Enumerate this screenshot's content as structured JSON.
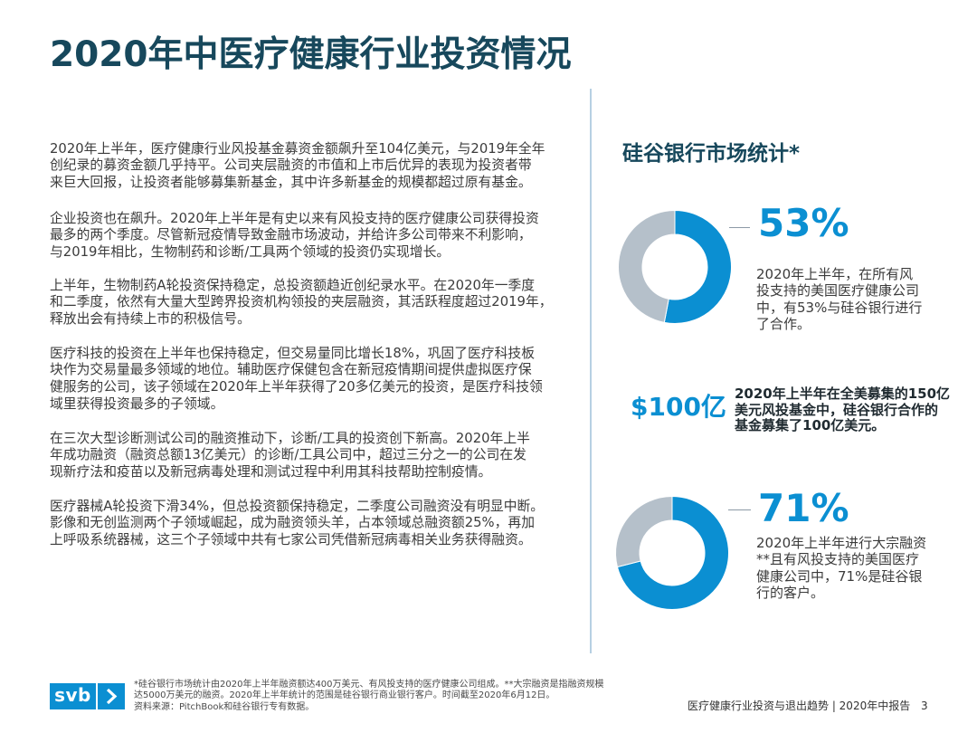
{
  "colors": {
    "title": "#17485c",
    "accent": "#0b8fd2",
    "muted": "#b5c0ca",
    "body_text": "#3b3b3b",
    "strong_text": "#1f2a30",
    "divider": "#b7d0e3",
    "leader_line": "#8c9aa6"
  },
  "header": {
    "title": "2020年中医疗健康行业投资情况"
  },
  "body": {
    "paragraphs": [
      {
        "lines": [
          "2020年上半年，医疗健康行业风投基金募资金额飙升至104亿美元，与2019年全年",
          "创纪录的募资金额几乎持平。公司夹层融资的市值和上市后优异的表现为投资者带",
          "来巨大回报，让投资者能够募集新基金，其中许多新基金的规模都超过原有基金。"
        ]
      },
      {
        "lines": [
          "企业投资也在飙升。2020年上半年是有史以来有风投支持的医疗健康公司获得投资",
          "最多的两个季度。尽管新冠疫情导致金融市场波动，并给许多公司带来不利影响，",
          "与2019年相比，生物制药和诊断/工具两个领域的投资仍实现增长。"
        ]
      },
      {
        "lines": [
          "上半年，生物制药A轮投资保持稳定，总投资额趋近创纪录水平。在2020年一季度",
          "和二季度，依然有大量大型跨界投资机构领投的夹层融资，其活跃程度超过2019年，",
          "释放出会有持续上市的积极信号。"
        ]
      },
      {
        "lines": [
          "医疗科技的投资在上半年也保持稳定，但交易量同比增长18%，巩固了医疗科技板",
          "块作为交易量最多领域的地位。辅助医疗保健包含在新冠疫情期间提供虚拟医疗保",
          "健服务的公司，该子领域在2020年上半年获得了20多亿美元的投资，是医疗科技领",
          "域里获得投资最多的子领域。"
        ]
      },
      {
        "lines": [
          "在三次大型诊断测试公司的融资推动下，诊断/工具的投资创下新高。2020年上半",
          "年成功融资（融资总额13亿美元）的诊断/工具公司中，超过三分之一的公司在发",
          "现新疗法和疫苗以及新冠病毒处理和测试过程中利用其科技帮助控制疫情。"
        ]
      },
      {
        "lines": [
          "医疗器械A轮投资下滑34%，但总投资额保持稳定，二季度公司融资没有明显中断。",
          "影像和无创监测两个子领域崛起，成为融资领头羊，占本领域总融资额25%，再加",
          "上呼吸系统器械，这三个子领域中共有七家公司凭借新冠病毒相关业务获得融资。"
        ]
      }
    ]
  },
  "sidebar": {
    "heading": "硅谷银行市场统计*",
    "stats": [
      {
        "value": "53%",
        "lines": [
          "2020年上半年，在所有风",
          "投支持的美国医疗健康公司",
          "中，有53%与硅谷银行进行",
          "了合作。"
        ]
      },
      {
        "value": "$100亿",
        "lines": [
          "2020年上半年在全美募集的150亿",
          "美元风投基金中，硅谷银行合作的",
          "基金募集了100亿美元。"
        ]
      },
      {
        "value": "71%",
        "lines": [
          "2020年上半年进行大宗融资",
          "**且有风投支持的美国医疗",
          "健康公司中，71%是硅谷银",
          "行的客户。"
        ]
      }
    ]
  },
  "chart_data": [
    {
      "type": "pie",
      "donut": true,
      "values": [
        53,
        47
      ],
      "colors": [
        "#0b8fd2",
        "#b5c0ca"
      ]
    },
    {
      "type": "pie",
      "donut": true,
      "values": [
        71,
        29
      ],
      "colors": [
        "#0b8fd2",
        "#b5c0ca"
      ]
    }
  ],
  "footer": {
    "logo_text": "svb",
    "logo_icon": "chevron-right-icon",
    "footnote_lines": [
      "*硅谷银行市场统计由2020年上半年融资额达400万美元、有风投支持的医疗健康公司组成。**大宗融资是指融资规模",
      "达5000万美元的融资。2020年上半年统计的范围是硅谷银行商业银行客户。时间截至2020年6月12日。",
      "资料来源：PitchBook和硅谷银行专有数据。"
    ],
    "report_title": "医疗健康行业投资与退出趋势 | 2020年中报告",
    "page_number": "3"
  }
}
